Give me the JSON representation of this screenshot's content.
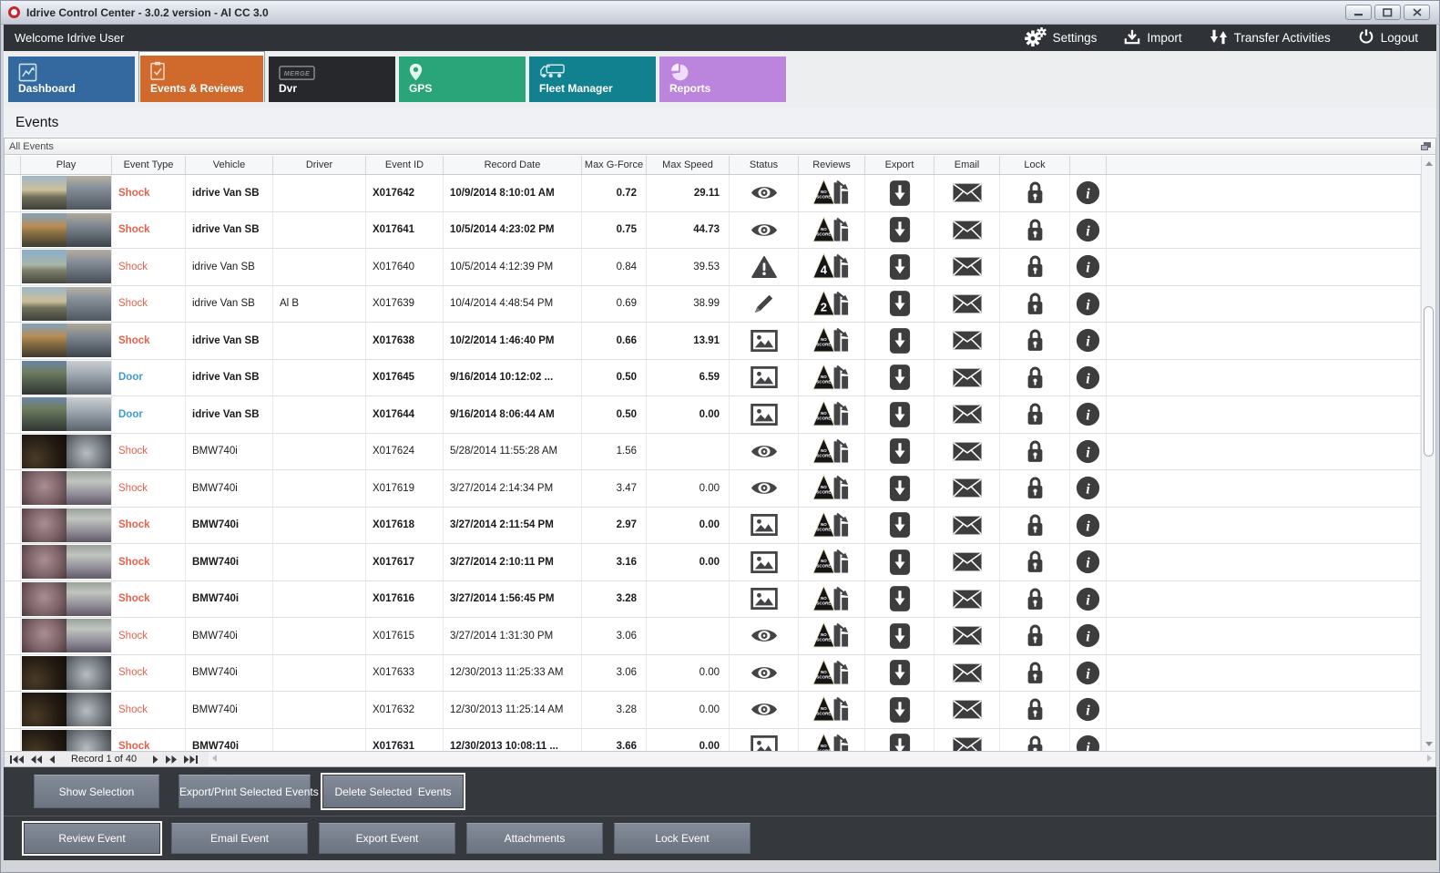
{
  "window": {
    "title": "Idrive Control Center - 3.0.2 version - Al CC 3.0",
    "app_icon_color": "#cc2229",
    "controls": [
      "minimize",
      "maximize",
      "close"
    ]
  },
  "toolbar": {
    "welcome_text": "Welcome Idrive User",
    "actions": [
      {
        "label": "Settings",
        "icon": "gear"
      },
      {
        "label": "Import",
        "icon": "import"
      },
      {
        "label": "Transfer Activities",
        "icon": "transfer"
      },
      {
        "label": "Logout",
        "icon": "power"
      }
    ]
  },
  "tabs": [
    {
      "label": "Dashboard",
      "icon": "dashboard",
      "color": "#33699e",
      "selected": false
    },
    {
      "label": "Events & Reviews",
      "icon": "clipboard",
      "color": "#d06a2c",
      "selected": true
    },
    {
      "label": "Dvr",
      "icon": "dvr",
      "color": "#26282c",
      "selected": false
    },
    {
      "label": "GPS",
      "icon": "pin",
      "color": "#2aa579",
      "selected": false
    },
    {
      "label": "Fleet Manager",
      "icon": "fleet",
      "color": "#11818f",
      "selected": false
    },
    {
      "label": "Reports",
      "icon": "pie",
      "color": "#bb85dd",
      "selected": false
    }
  ],
  "page": {
    "heading": "Events",
    "panel_title": "All Events"
  },
  "table": {
    "columns": [
      "",
      "Play",
      "Event Type",
      "Vehicle",
      "Driver",
      "Event ID",
      "Record Date",
      "Max G-Force",
      "Max Speed",
      "Status",
      "Reviews",
      "Export",
      "Email",
      "Lock",
      ""
    ],
    "event_type_colors": {
      "Shock": "#e8604a",
      "Door": "#3f9bd8"
    },
    "rows": [
      {
        "unread": true,
        "type": "Shock",
        "vehicle": "idrive Van SB",
        "driver": "",
        "event_id": "X017642",
        "record_date": "10/9/2014 8:10:01 AM",
        "g_force": "0.72",
        "max_speed": "29.11",
        "status": "eye",
        "review": "NO SCORE",
        "thumb": "van-road-a"
      },
      {
        "unread": true,
        "type": "Shock",
        "vehicle": "idrive Van SB",
        "driver": "",
        "event_id": "X017641",
        "record_date": "10/5/2014 4:23:02 PM",
        "g_force": "0.75",
        "max_speed": "44.73",
        "status": "eye",
        "review": "NO SCORE",
        "thumb": "van-road-b"
      },
      {
        "unread": false,
        "type": "Shock",
        "vehicle": "idrive Van SB",
        "driver": "",
        "event_id": "X017640",
        "record_date": "10/5/2014 4:12:39 PM",
        "g_force": "0.84",
        "max_speed": "39.53",
        "status": "warning",
        "review": "4",
        "thumb": "van-road-c"
      },
      {
        "unread": false,
        "type": "Shock",
        "vehicle": "idrive Van SB",
        "driver": "Al B",
        "event_id": "X017639",
        "record_date": "10/4/2014 4:48:54 PM",
        "g_force": "0.69",
        "max_speed": "38.99",
        "status": "pencil",
        "review": "2",
        "thumb": "van-road-a"
      },
      {
        "unread": true,
        "type": "Shock",
        "vehicle": "idrive Van SB",
        "driver": "",
        "event_id": "X017638",
        "record_date": "10/2/2014 1:46:40 PM",
        "g_force": "0.66",
        "max_speed": "13.91",
        "status": "picture",
        "review": "NO SCORE",
        "thumb": "van-road-b"
      },
      {
        "unread": true,
        "type": "Door",
        "vehicle": "idrive Van SB",
        "driver": "",
        "event_id": "X017645",
        "record_date": "9/16/2014 10:12:02 ...",
        "g_force": "0.50",
        "max_speed": "6.59",
        "status": "picture",
        "review": "NO SCORE",
        "thumb": "van-trees"
      },
      {
        "unread": true,
        "type": "Door",
        "vehicle": "idrive Van SB",
        "driver": "",
        "event_id": "X017644",
        "record_date": "9/16/2014 8:06:44 AM",
        "g_force": "0.50",
        "max_speed": "0.00",
        "status": "picture",
        "review": "NO SCORE",
        "thumb": "van-trees"
      },
      {
        "unread": false,
        "type": "Shock",
        "vehicle": "BMW740i",
        "driver": "",
        "event_id": "X017624",
        "record_date": "5/28/2014 11:55:28 AM",
        "g_force": "1.56",
        "max_speed": "",
        "status": "eye",
        "review": "NO SCORE",
        "thumb": "bmw-night"
      },
      {
        "unread": false,
        "type": "Shock",
        "vehicle": "BMW740i",
        "driver": "",
        "event_id": "X017619",
        "record_date": "3/27/2014 2:14:34 PM",
        "g_force": "3.47",
        "max_speed": "0.00",
        "status": "eye",
        "review": "NO SCORE",
        "thumb": "bmw-room"
      },
      {
        "unread": true,
        "type": "Shock",
        "vehicle": "BMW740i",
        "driver": "",
        "event_id": "X017618",
        "record_date": "3/27/2014 2:11:54 PM",
        "g_force": "2.97",
        "max_speed": "0.00",
        "status": "picture",
        "review": "NO SCORE",
        "thumb": "bmw-room"
      },
      {
        "unread": true,
        "type": "Shock",
        "vehicle": "BMW740i",
        "driver": "",
        "event_id": "X017617",
        "record_date": "3/27/2014 2:10:11 PM",
        "g_force": "3.16",
        "max_speed": "0.00",
        "status": "picture",
        "review": "NO SCORE",
        "thumb": "bmw-room"
      },
      {
        "unread": true,
        "type": "Shock",
        "vehicle": "BMW740i",
        "driver": "",
        "event_id": "X017616",
        "record_date": "3/27/2014 1:56:45 PM",
        "g_force": "3.28",
        "max_speed": "",
        "status": "picture",
        "review": "NO SCORE",
        "thumb": "bmw-room"
      },
      {
        "unread": false,
        "type": "Shock",
        "vehicle": "BMW740i",
        "driver": "",
        "event_id": "X017615",
        "record_date": "3/27/2014 1:31:30 PM",
        "g_force": "3.06",
        "max_speed": "",
        "status": "eye",
        "review": "NO SCORE",
        "thumb": "bmw-room"
      },
      {
        "unread": false,
        "type": "Shock",
        "vehicle": "BMW740i",
        "driver": "",
        "event_id": "X017633",
        "record_date": "12/30/2013 11:25:33 AM",
        "g_force": "3.06",
        "max_speed": "0.00",
        "status": "eye",
        "review": "NO SCORE",
        "thumb": "bmw-night"
      },
      {
        "unread": false,
        "type": "Shock",
        "vehicle": "BMW740i",
        "driver": "",
        "event_id": "X017632",
        "record_date": "12/30/2013 11:25:14 AM",
        "g_force": "3.28",
        "max_speed": "0.00",
        "status": "eye",
        "review": "NO SCORE",
        "thumb": "bmw-night"
      },
      {
        "unread": true,
        "type": "Shock",
        "vehicle": "BMW740i",
        "driver": "",
        "event_id": "X017631",
        "record_date": "12/30/2013 10:08:11 ...",
        "g_force": "3.66",
        "max_speed": "0.00",
        "status": "picture",
        "review": "NO SCORE",
        "thumb": "bmw-night"
      }
    ]
  },
  "record_nav": {
    "label": "Record 1 of 40"
  },
  "selection_buttons": [
    {
      "label": "Show Selection",
      "focused": false
    },
    {
      "label": "Export/Print Selected Events",
      "focused": false
    },
    {
      "label": "Delete Selected  Events",
      "focused": true
    }
  ],
  "event_buttons": [
    {
      "label": "Review Event",
      "focused": true
    },
    {
      "label": "Email Event",
      "focused": false
    },
    {
      "label": "Export Event",
      "focused": false
    },
    {
      "label": "Attachments",
      "focused": false
    },
    {
      "label": "Lock Event",
      "focused": false
    }
  ]
}
